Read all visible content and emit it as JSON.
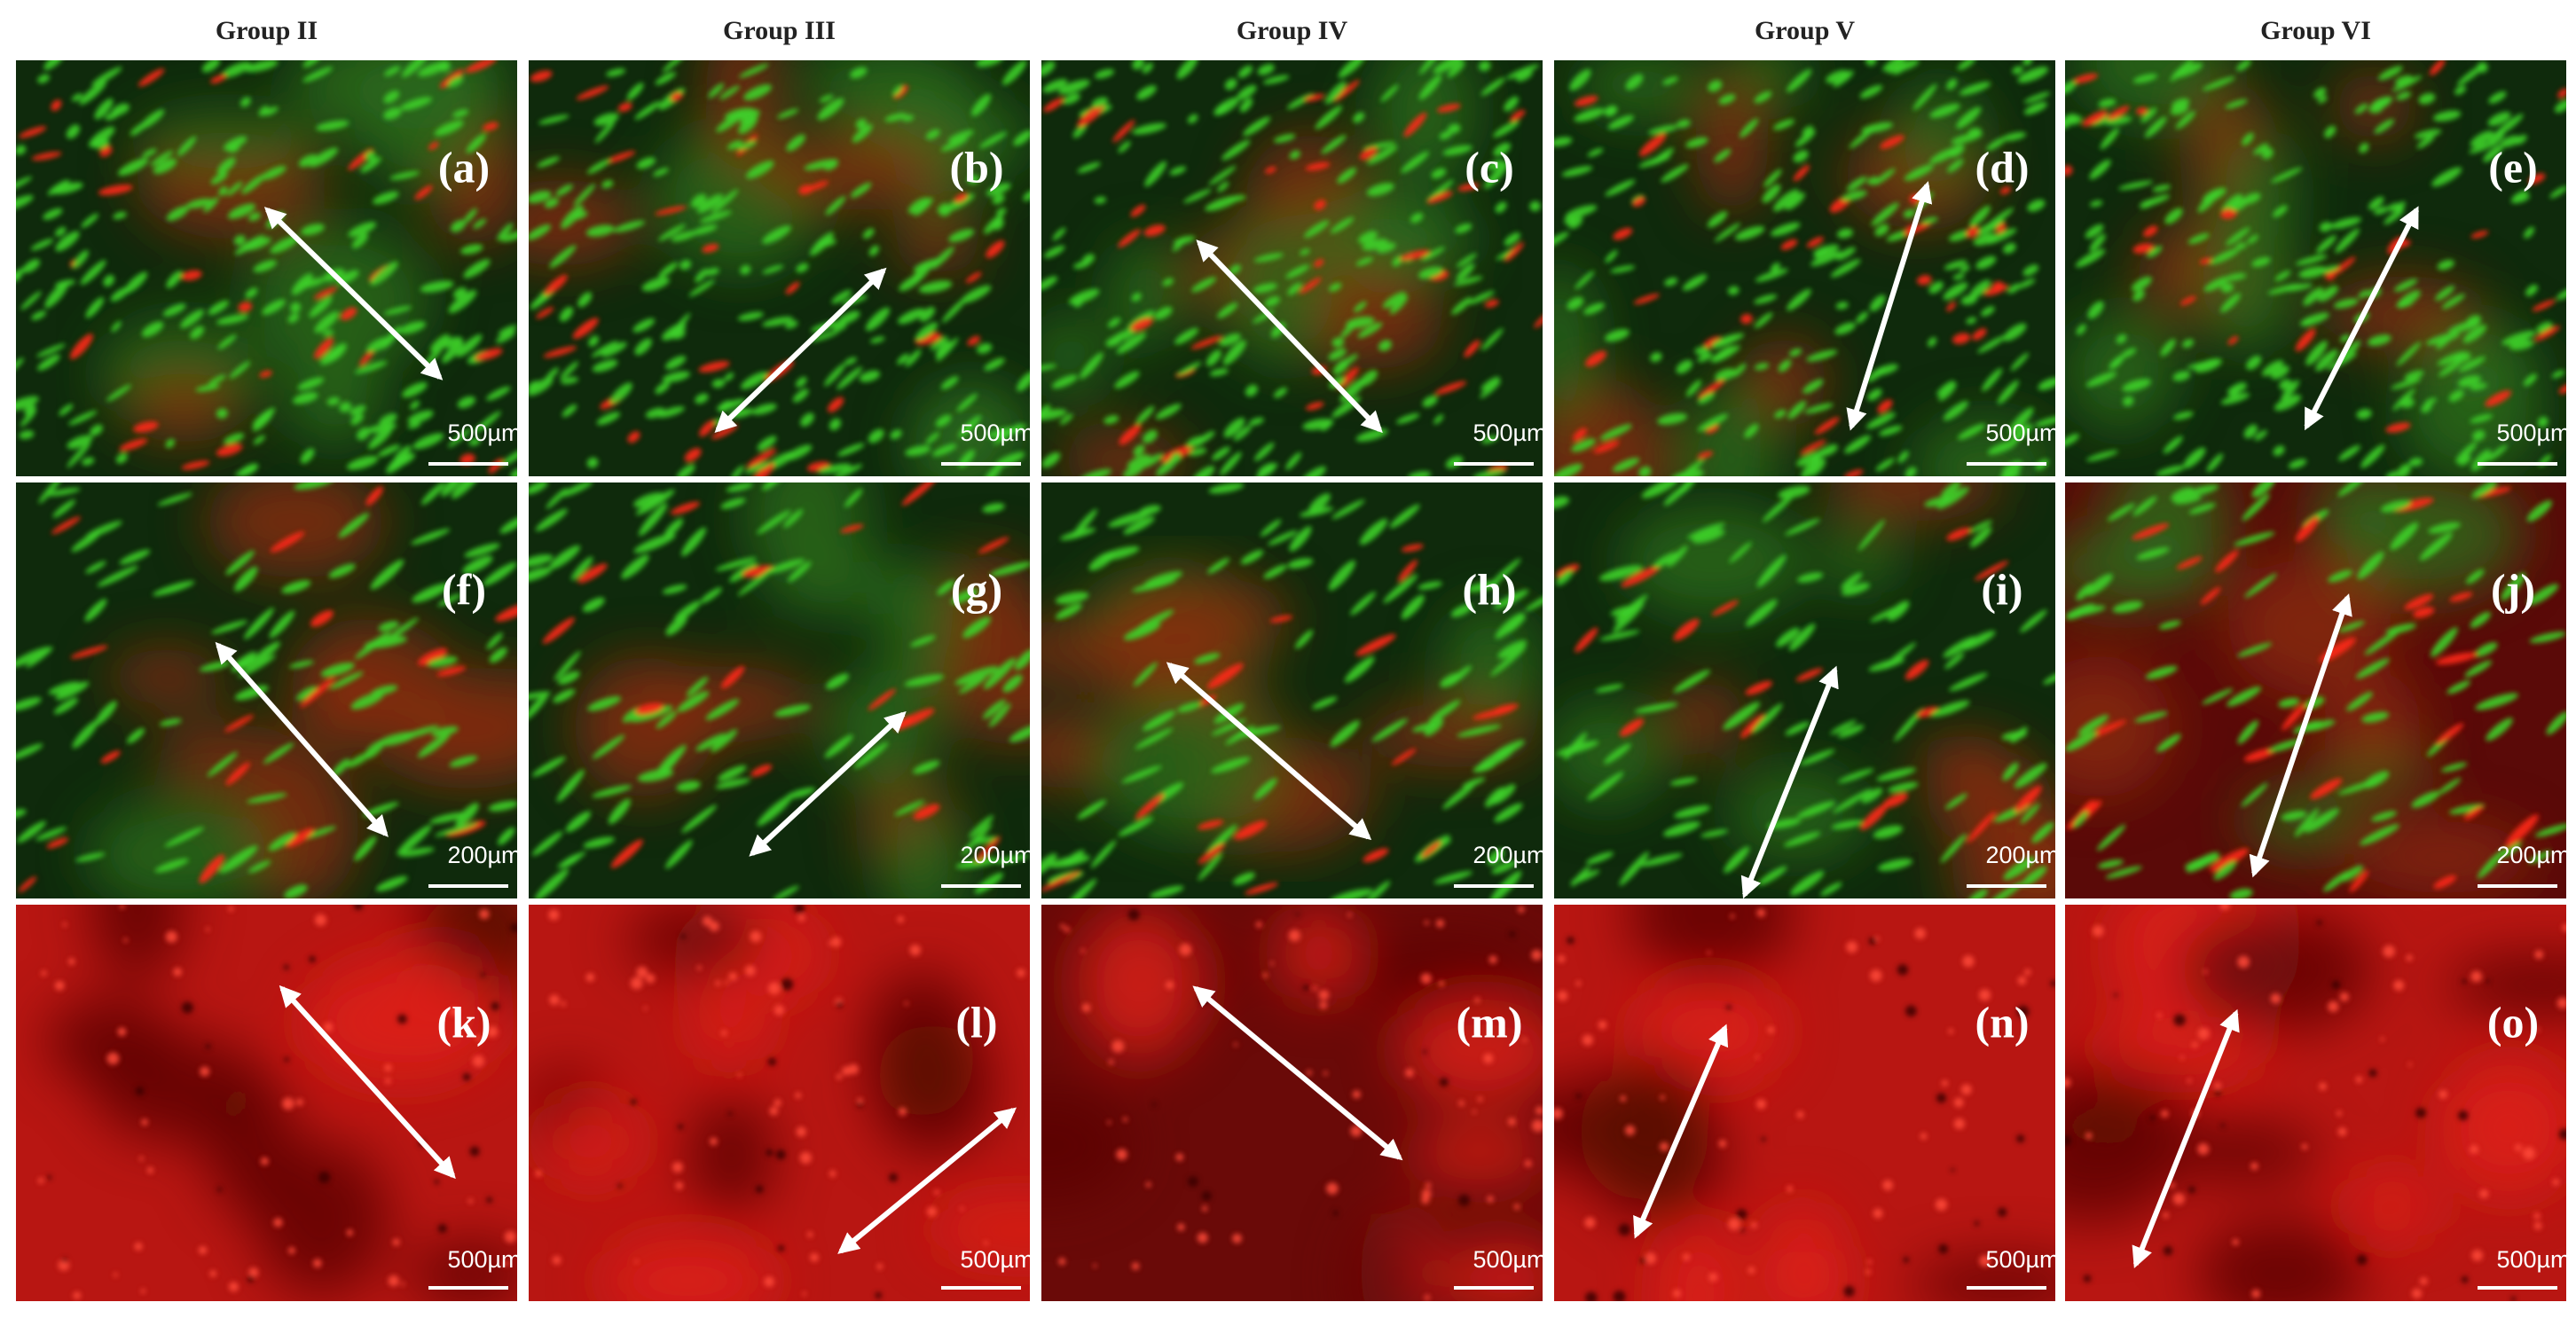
{
  "columns": [
    "Group II",
    "Group III",
    "Group IV",
    "Group V",
    "Group VI"
  ],
  "panels": [
    {
      "label": "(a)",
      "scale": "500µm"
    },
    {
      "label": "(b)",
      "scale": "500µm"
    },
    {
      "label": "(c)",
      "scale": "500µm"
    },
    {
      "label": "(d)",
      "scale": "500µm"
    },
    {
      "label": "(e)",
      "scale": "500µm"
    },
    {
      "label": "(f)",
      "scale": "200µm"
    },
    {
      "label": "(g)",
      "scale": "200µm"
    },
    {
      "label": "(h)",
      "scale": "200µm"
    },
    {
      "label": "(i)",
      "scale": "200µm"
    },
    {
      "label": "(j)",
      "scale": "200µm"
    },
    {
      "label": "(k)",
      "scale": "500µm"
    },
    {
      "label": "(l)",
      "scale": "500µm"
    },
    {
      "label": "(m)",
      "scale": "500µm"
    },
    {
      "label": "(n)",
      "scale": "500µm"
    },
    {
      "label": "(o)",
      "scale": "500µm"
    }
  ]
}
